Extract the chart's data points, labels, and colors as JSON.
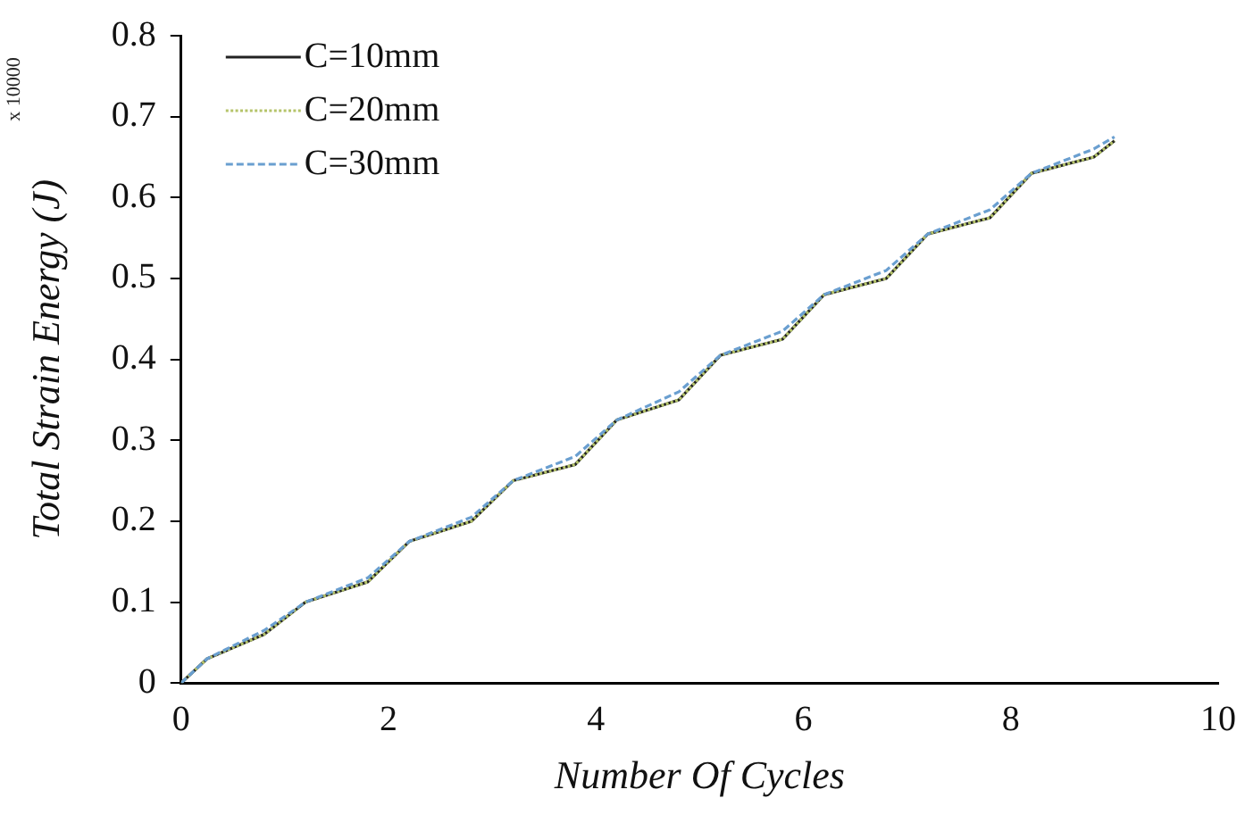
{
  "chart_data": {
    "type": "line",
    "xlabel": "Number Of Cycles",
    "ylabel": "Total Strain Energy (J)",
    "annotations": [
      "x 10000"
    ],
    "x": [
      0,
      0.25,
      0.8,
      1.2,
      1.8,
      2.2,
      2.8,
      3.2,
      3.8,
      4.2,
      4.8,
      5.2,
      5.8,
      6.2,
      6.8,
      7.2,
      7.8,
      8.2,
      8.8,
      9
    ],
    "series": [
      {
        "name": "C=10mm",
        "color": "#222222",
        "line_style": "solid",
        "values": [
          0,
          0.03,
          0.06,
          0.1,
          0.125,
          0.175,
          0.2,
          0.25,
          0.27,
          0.325,
          0.35,
          0.405,
          0.425,
          0.48,
          0.5,
          0.555,
          0.575,
          0.63,
          0.65,
          0.67
        ]
      },
      {
        "name": "C=20mm",
        "color": "#b5c46a",
        "line_style": "dotted",
        "values": [
          0,
          0.03,
          0.06,
          0.1,
          0.125,
          0.175,
          0.2,
          0.25,
          0.27,
          0.325,
          0.35,
          0.405,
          0.425,
          0.48,
          0.5,
          0.555,
          0.575,
          0.63,
          0.65,
          0.67
        ]
      },
      {
        "name": "C=30mm",
        "color": "#6a9fd0",
        "line_style": "dashed",
        "values": [
          0,
          0.03,
          0.065,
          0.1,
          0.13,
          0.175,
          0.205,
          0.25,
          0.28,
          0.325,
          0.36,
          0.405,
          0.435,
          0.48,
          0.51,
          0.555,
          0.585,
          0.63,
          0.66,
          0.675
        ]
      }
    ],
    "xlim": [
      0,
      10
    ],
    "xticks": [
      0,
      2,
      4,
      6,
      8,
      10
    ],
    "ylim": [
      0,
      0.8
    ],
    "yticks": [
      0,
      0.1,
      0.2,
      0.3,
      0.4,
      0.5,
      0.6,
      0.7,
      0.8
    ],
    "grid": false,
    "legend": "top left",
    "marker": "none"
  }
}
